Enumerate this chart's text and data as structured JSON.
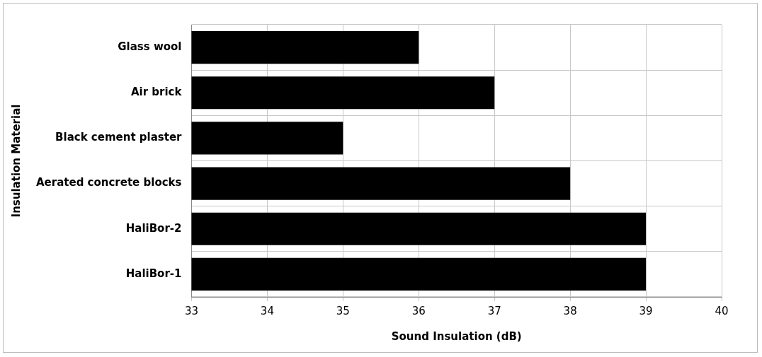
{
  "chart_data": {
    "type": "bar",
    "orientation": "horizontal",
    "xlabel": "Sound Insulation (dB)",
    "ylabel": "Insulation Material",
    "categories": [
      "Glass wool",
      "Air brick",
      "Black cement plaster",
      "Aerated concrete blocks",
      "HaliBor-2",
      "HaliBor-1"
    ],
    "values": [
      36,
      37,
      35,
      38,
      39,
      39
    ],
    "color": "#000000",
    "xlim": [
      33,
      40
    ],
    "xticks": [
      33,
      34,
      35,
      36,
      37,
      38,
      39,
      40
    ],
    "grid": true,
    "legend": false
  }
}
